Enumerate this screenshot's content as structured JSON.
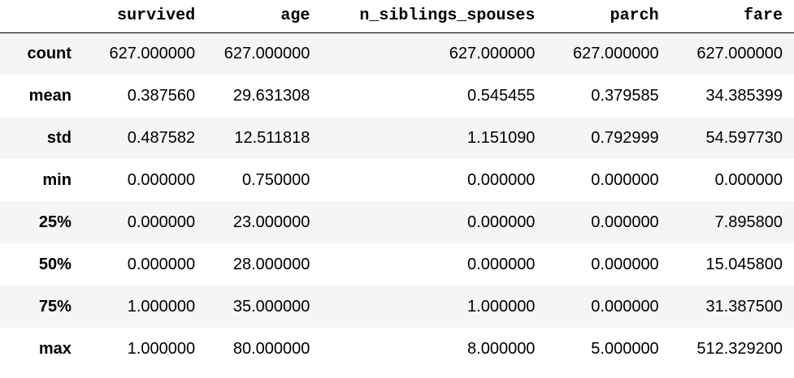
{
  "table": {
    "columns": [
      "survived",
      "age",
      "n_siblings_spouses",
      "parch",
      "fare"
    ],
    "rows": [
      {
        "label": "count",
        "values": [
          "627.000000",
          "627.000000",
          "627.000000",
          "627.000000",
          "627.000000"
        ]
      },
      {
        "label": "mean",
        "values": [
          "0.387560",
          "29.631308",
          "0.545455",
          "0.379585",
          "34.385399"
        ]
      },
      {
        "label": "std",
        "values": [
          "0.487582",
          "12.511818",
          "1.151090",
          "0.792999",
          "54.597730"
        ]
      },
      {
        "label": "min",
        "values": [
          "0.000000",
          "0.750000",
          "0.000000",
          "0.000000",
          "0.000000"
        ]
      },
      {
        "label": "25%",
        "values": [
          "0.000000",
          "23.000000",
          "0.000000",
          "0.000000",
          "7.895800"
        ]
      },
      {
        "label": "50%",
        "values": [
          "0.000000",
          "28.000000",
          "0.000000",
          "0.000000",
          "15.045800"
        ]
      },
      {
        "label": "75%",
        "values": [
          "1.000000",
          "35.000000",
          "1.000000",
          "0.000000",
          "31.387500"
        ]
      },
      {
        "label": "max",
        "values": [
          "1.000000",
          "80.000000",
          "8.000000",
          "5.000000",
          "512.329200"
        ]
      }
    ]
  }
}
